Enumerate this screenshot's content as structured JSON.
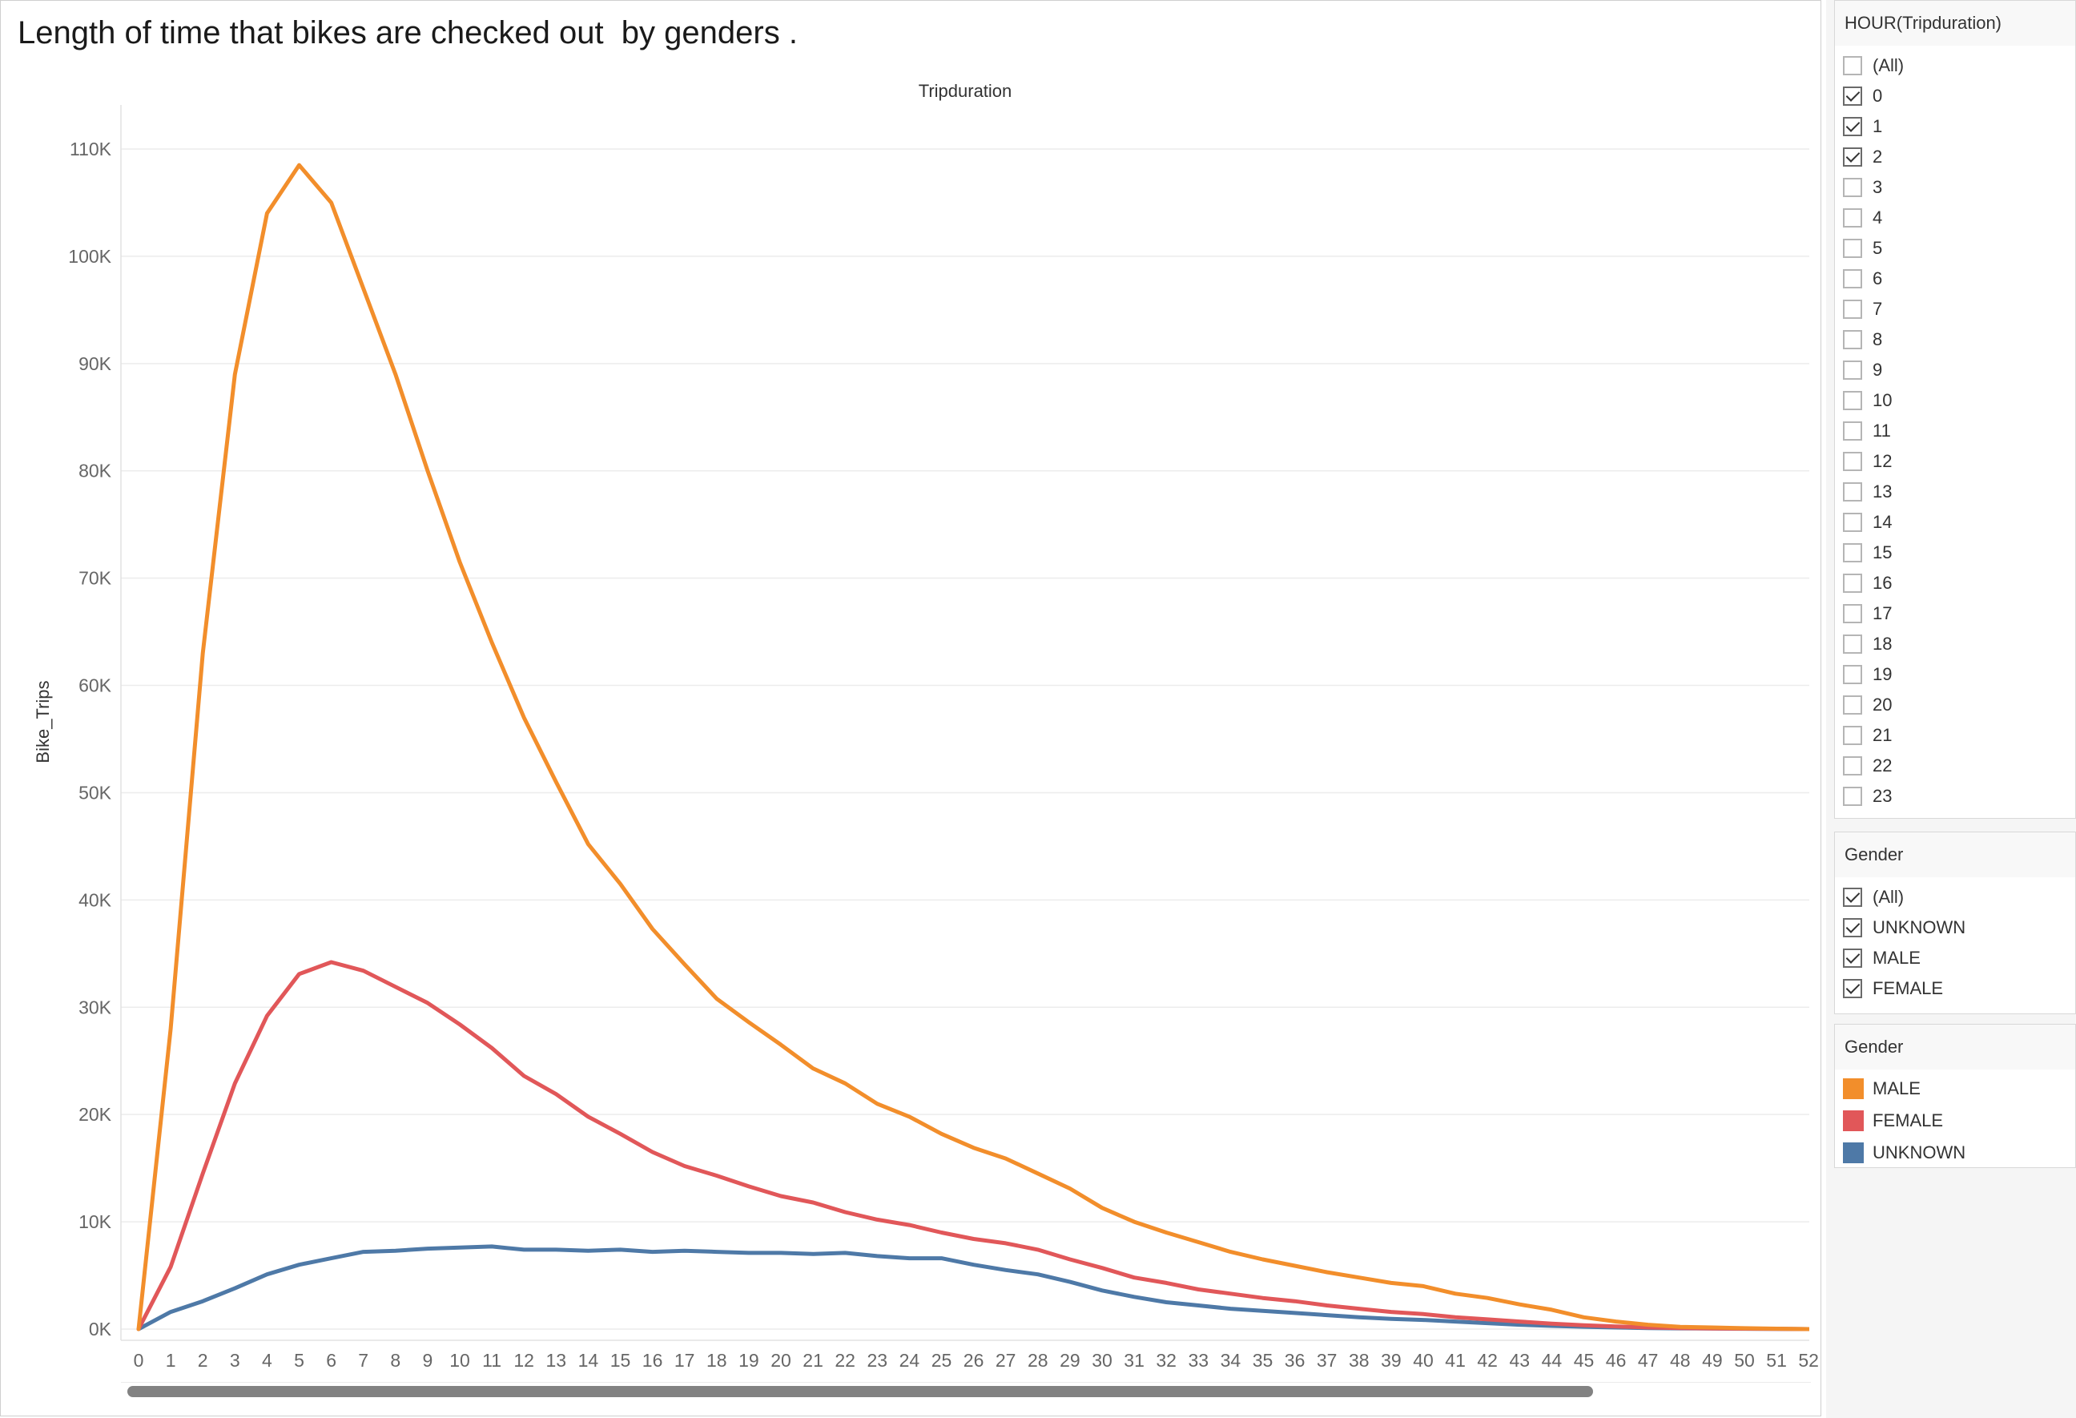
{
  "sheet": {
    "title": "Length of time that bikes are checked out  by genders ."
  },
  "chart_data": {
    "type": "line",
    "title": "Tripduration",
    "xlabel": "",
    "ylabel": "Bike_Trips",
    "x": [
      0,
      1,
      2,
      3,
      4,
      5,
      6,
      7,
      8,
      9,
      10,
      11,
      12,
      13,
      14,
      15,
      16,
      17,
      18,
      19,
      20,
      21,
      22,
      23,
      24,
      25,
      26,
      27,
      28,
      29,
      30,
      31,
      32,
      33,
      34,
      35,
      36,
      37,
      38,
      39,
      40,
      41,
      42,
      43,
      44,
      45,
      46,
      47,
      48,
      49,
      50,
      51,
      52
    ],
    "x_tick_labels": [
      "0",
      "1",
      "2",
      "3",
      "4",
      "5",
      "6",
      "7",
      "8",
      "9",
      "10",
      "11",
      "12",
      "13",
      "14",
      "15",
      "16",
      "17",
      "18",
      "19",
      "20",
      "21",
      "22",
      "23",
      "24",
      "25",
      "26",
      "27",
      "28",
      "29",
      "30",
      "31",
      "32",
      "33",
      "34",
      "35",
      "36",
      "37",
      "38",
      "39",
      "40",
      "41",
      "42",
      "43",
      "44",
      "45",
      "46",
      "47",
      "48",
      "49",
      "50",
      "51",
      "52"
    ],
    "xlim": [
      0,
      52.6
    ],
    "ylim": [
      0,
      110000
    ],
    "y_ticks": [
      0,
      10000,
      20000,
      30000,
      40000,
      50000,
      60000,
      70000,
      80000,
      90000,
      100000,
      110000
    ],
    "y_tick_labels": [
      "0K",
      "10K",
      "20K",
      "30K",
      "40K",
      "50K",
      "60K",
      "70K",
      "80K",
      "90K",
      "100K",
      "110K"
    ],
    "grid": "horizontal",
    "legend_position": "right",
    "series": [
      {
        "name": "MALE",
        "color": "#F28E2B",
        "values": [
          0,
          28000,
          63000,
          89000,
          104000,
          108500,
          105000,
          97000,
          89000,
          80000,
          71500,
          64000,
          57000,
          51000,
          45200,
          41500,
          37300,
          34000,
          30800,
          28600,
          26500,
          24300,
          22900,
          21000,
          19800,
          18200,
          16900,
          15900,
          14500,
          13100,
          11300,
          10000,
          9000,
          8100,
          7200,
          6500,
          5900,
          5300,
          4800,
          4300,
          4000,
          3300,
          2900,
          2300,
          1800,
          1100,
          700,
          400,
          200,
          150,
          80,
          40,
          0
        ]
      },
      {
        "name": "FEMALE",
        "color": "#E15759",
        "values": [
          0,
          5800,
          14500,
          22900,
          29200,
          33100,
          34200,
          33400,
          31900,
          30400,
          28400,
          26200,
          23600,
          21900,
          19800,
          18200,
          16500,
          15200,
          14300,
          13300,
          12400,
          11800,
          10900,
          10200,
          9700,
          9000,
          8400,
          8000,
          7400,
          6500,
          5700,
          4800,
          4300,
          3700,
          3300,
          2900,
          2600,
          2200,
          1900,
          1600,
          1400,
          1100,
          900,
          700,
          500,
          350,
          250,
          150,
          100,
          60,
          40,
          20,
          0
        ]
      },
      {
        "name": "UNKNOWN",
        "color": "#4E79A7",
        "values": [
          0,
          1600,
          2600,
          3800,
          5100,
          6000,
          6600,
          7200,
          7300,
          7500,
          7600,
          7700,
          7400,
          7400,
          7300,
          7400,
          7200,
          7300,
          7200,
          7100,
          7100,
          7000,
          7100,
          6800,
          6600,
          6600,
          6000,
          5500,
          5100,
          4400,
          3600,
          3000,
          2500,
          2200,
          1900,
          1700,
          1500,
          1300,
          1100,
          950,
          850,
          700,
          550,
          400,
          300,
          220,
          150,
          100,
          70,
          50,
          30,
          20,
          0
        ]
      }
    ]
  },
  "filters": [
    {
      "title": "HOUR(Tripduration)",
      "items": [
        {
          "label": "(All)",
          "checked": false
        },
        {
          "label": "0",
          "checked": true
        },
        {
          "label": "1",
          "checked": true
        },
        {
          "label": "2",
          "checked": true
        },
        {
          "label": "3",
          "checked": false
        },
        {
          "label": "4",
          "checked": false
        },
        {
          "label": "5",
          "checked": false
        },
        {
          "label": "6",
          "checked": false
        },
        {
          "label": "7",
          "checked": false
        },
        {
          "label": "8",
          "checked": false
        },
        {
          "label": "9",
          "checked": false
        },
        {
          "label": "10",
          "checked": false
        },
        {
          "label": "11",
          "checked": false
        },
        {
          "label": "12",
          "checked": false
        },
        {
          "label": "13",
          "checked": false
        },
        {
          "label": "14",
          "checked": false
        },
        {
          "label": "15",
          "checked": false
        },
        {
          "label": "16",
          "checked": false
        },
        {
          "label": "17",
          "checked": false
        },
        {
          "label": "18",
          "checked": false
        },
        {
          "label": "19",
          "checked": false
        },
        {
          "label": "20",
          "checked": false
        },
        {
          "label": "21",
          "checked": false
        },
        {
          "label": "22",
          "checked": false
        },
        {
          "label": "23",
          "checked": false
        }
      ]
    },
    {
      "title": "Gender",
      "items": [
        {
          "label": "(All)",
          "checked": true
        },
        {
          "label": "UNKNOWN",
          "checked": true
        },
        {
          "label": "MALE",
          "checked": true
        },
        {
          "label": "FEMALE",
          "checked": true
        }
      ]
    }
  ],
  "legend": {
    "title": "Gender",
    "items": [
      {
        "label": "MALE",
        "color": "#F28E2B"
      },
      {
        "label": "FEMALE",
        "color": "#E15759"
      },
      {
        "label": "UNKNOWN",
        "color": "#4E79A7"
      }
    ]
  }
}
